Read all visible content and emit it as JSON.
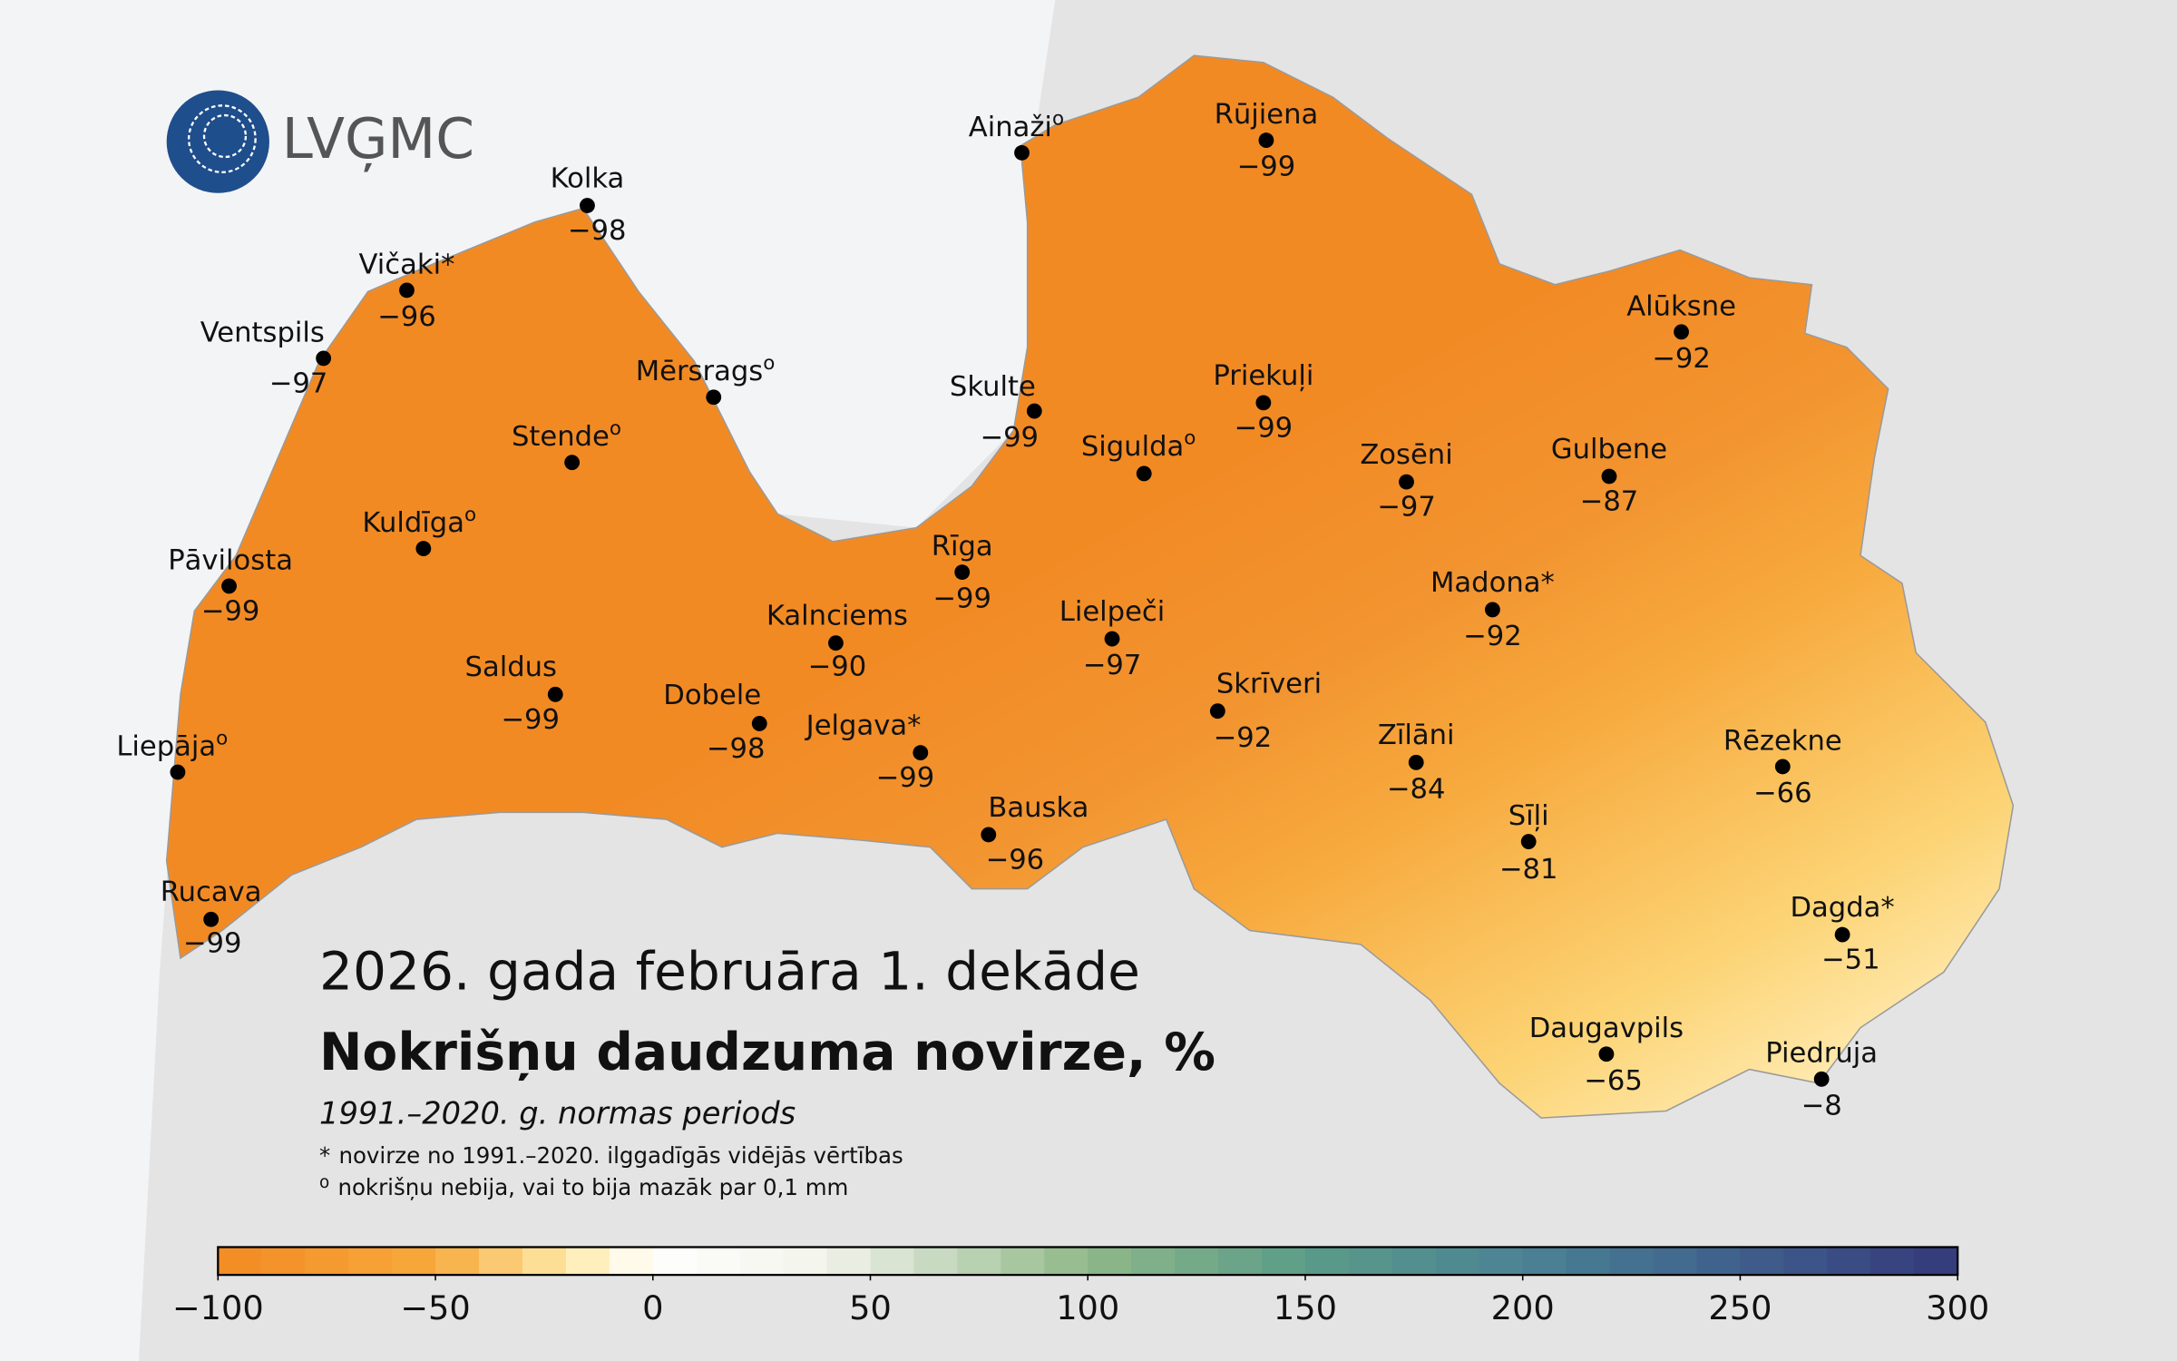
{
  "header": {
    "logo_text": "LVĢMC"
  },
  "title": "2026. gada februāra 1. dekāde",
  "heading": "Nokrišņu daudzuma novirze, %",
  "subtitle": "1991.–2020. g. normas periods",
  "notes": [
    {
      "symbol": "*",
      "text": "novirze no 1991.–2020. ilggadīgās vidējās vērtības"
    },
    {
      "symbol": "o",
      "text": "nokrišņu nebija, vai to bija mazāk par 0,1 mm"
    }
  ],
  "stations": [
    {
      "name": "Kolka",
      "value": -98,
      "value_label": "−98"
    },
    {
      "name": "Vičaki*",
      "value": -96,
      "value_label": "−96"
    },
    {
      "name": "Ventspils",
      "value": -97,
      "value_label": "−97"
    },
    {
      "name": "Mērsrags",
      "sup": "o"
    },
    {
      "name": "Stende",
      "sup": "o"
    },
    {
      "name": "Kuldīga",
      "sup": "o"
    },
    {
      "name": "Pāvilosta",
      "value": -99,
      "value_label": "−99"
    },
    {
      "name": "Saldus",
      "value": -99,
      "value_label": "−99"
    },
    {
      "name": "Liepāja",
      "sup": "o"
    },
    {
      "name": "Rucava",
      "value": -99,
      "value_label": "−99"
    },
    {
      "name": "Dobele",
      "value": -98,
      "value_label": "−98"
    },
    {
      "name": "Kalnciems",
      "value": -90,
      "value_label": "−90"
    },
    {
      "name": "Jelgava*",
      "value": -99,
      "value_label": "−99"
    },
    {
      "name": "Bauska",
      "value": -96,
      "value_label": "−96"
    },
    {
      "name": "Rīga",
      "value": -99,
      "value_label": "−99"
    },
    {
      "name": "Lielpeči",
      "value": -97,
      "value_label": "−97"
    },
    {
      "name": "Skrīveri",
      "value": -92,
      "value_label": "−92"
    },
    {
      "name": "Skulte",
      "value": -99,
      "value_label": "−99"
    },
    {
      "name": "Sigulda",
      "sup": "o"
    },
    {
      "name": "Ainaži",
      "sup": "o"
    },
    {
      "name": "Rūjiena",
      "value": -99,
      "value_label": "−99"
    },
    {
      "name": "Priekuļi",
      "value": -99,
      "value_label": "−99"
    },
    {
      "name": "Zosēni",
      "value": -97,
      "value_label": "−97"
    },
    {
      "name": "Madona*",
      "value": -92,
      "value_label": "−92"
    },
    {
      "name": "Alūksne",
      "value": -92,
      "value_label": "−92"
    },
    {
      "name": "Gulbene",
      "value": -87,
      "value_label": "−87"
    },
    {
      "name": "Zīlāni",
      "value": -84,
      "value_label": "−84"
    },
    {
      "name": "Sīļi",
      "value": -81,
      "value_label": "−81"
    },
    {
      "name": "Rēzekne",
      "value": -66,
      "value_label": "−66"
    },
    {
      "name": "Dagda*",
      "value": -51,
      "value_label": "−51"
    },
    {
      "name": "Daugavpils",
      "value": -65,
      "value_label": "−65"
    },
    {
      "name": "Piedruja",
      "value": -8,
      "value_label": "−8"
    }
  ],
  "colorbar": {
    "range": [
      -100,
      300
    ],
    "step": 10,
    "ticks": [
      {
        "value": -100,
        "label": "−100"
      },
      {
        "value": -50,
        "label": "−50"
      },
      0,
      50,
      100,
      150,
      200,
      250,
      300
    ],
    "stops": [
      [
        -100,
        "#f28a24"
      ],
      [
        -50,
        "#f7a93c"
      ],
      [
        -20,
        "#fde9a6"
      ],
      [
        0,
        "#ffffff"
      ],
      [
        40,
        "#f2f3ea"
      ],
      [
        100,
        "#8fb889"
      ],
      [
        150,
        "#5b9c88"
      ],
      [
        200,
        "#4b8295"
      ],
      [
        250,
        "#3f5f8c"
      ],
      [
        300,
        "#34397a"
      ]
    ]
  }
}
